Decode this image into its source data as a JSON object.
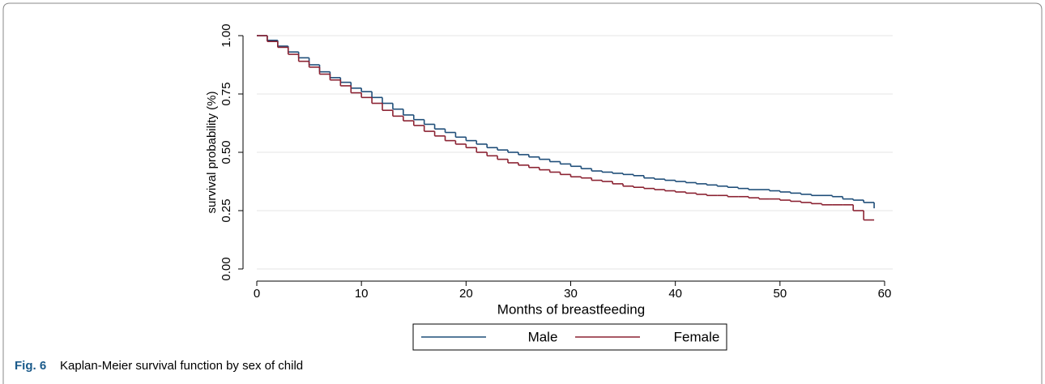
{
  "chart_data": {
    "type": "step",
    "x_label": "Months of breastfeeding",
    "y_label": "survival probability (%)",
    "caption_label": "Fig. 6",
    "caption": "Kaplan-Meier survival function by sex of child",
    "x": [
      0,
      1,
      2,
      3,
      4,
      5,
      6,
      7,
      8,
      9,
      10,
      11,
      12,
      13,
      14,
      15,
      16,
      17,
      18,
      19,
      20,
      21,
      22,
      23,
      24,
      25,
      26,
      27,
      28,
      29,
      30,
      31,
      32,
      33,
      34,
      35,
      36,
      37,
      38,
      39,
      40,
      41,
      42,
      43,
      44,
      45,
      46,
      47,
      48,
      49,
      50,
      51,
      52,
      53,
      54,
      55,
      56,
      57,
      58,
      59
    ],
    "series": [
      {
        "name": "Male",
        "color": "#1f4e79",
        "values": [
          1.0,
          0.98,
          0.955,
          0.93,
          0.905,
          0.875,
          0.845,
          0.82,
          0.8,
          0.775,
          0.76,
          0.735,
          0.71,
          0.685,
          0.66,
          0.64,
          0.62,
          0.6,
          0.585,
          0.565,
          0.55,
          0.535,
          0.52,
          0.51,
          0.5,
          0.49,
          0.48,
          0.47,
          0.46,
          0.45,
          0.44,
          0.43,
          0.42,
          0.415,
          0.41,
          0.405,
          0.4,
          0.39,
          0.385,
          0.38,
          0.375,
          0.37,
          0.365,
          0.36,
          0.355,
          0.35,
          0.345,
          0.34,
          0.34,
          0.335,
          0.33,
          0.325,
          0.32,
          0.315,
          0.315,
          0.31,
          0.3,
          0.295,
          0.285,
          0.26
        ]
      },
      {
        "name": "Female",
        "color": "#8b2232",
        "values": [
          1.0,
          0.975,
          0.95,
          0.92,
          0.89,
          0.865,
          0.835,
          0.81,
          0.785,
          0.755,
          0.735,
          0.71,
          0.68,
          0.655,
          0.635,
          0.615,
          0.59,
          0.57,
          0.55,
          0.535,
          0.52,
          0.5,
          0.485,
          0.47,
          0.455,
          0.445,
          0.435,
          0.425,
          0.415,
          0.405,
          0.395,
          0.39,
          0.38,
          0.375,
          0.365,
          0.355,
          0.35,
          0.345,
          0.34,
          0.335,
          0.33,
          0.325,
          0.32,
          0.315,
          0.315,
          0.31,
          0.31,
          0.305,
          0.3,
          0.3,
          0.295,
          0.29,
          0.285,
          0.28,
          0.275,
          0.275,
          0.275,
          0.25,
          0.21,
          0.21
        ]
      }
    ],
    "xlim": [
      0,
      60
    ],
    "xticks": [
      0,
      10,
      20,
      30,
      40,
      50,
      60
    ],
    "ylim": [
      0,
      1
    ],
    "yticks": [
      {
        "value": 0,
        "label": "0.00"
      },
      {
        "value": 0.25,
        "label": "0.25"
      },
      {
        "value": 0.5,
        "label": "0.50"
      },
      {
        "value": 0.75,
        "label": "0.75"
      },
      {
        "value": 1,
        "label": "1.00"
      }
    ],
    "grid": true
  }
}
